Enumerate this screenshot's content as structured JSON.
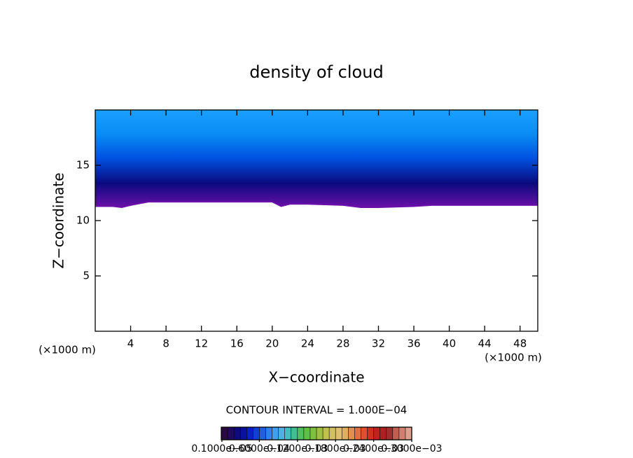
{
  "chart_data": {
    "type": "contour",
    "title": "density of cloud",
    "xlabel": "X−coordinate",
    "ylabel": "Z−coordinate",
    "x_unit": "(×1000 m)",
    "y_unit": "(×1000 m)",
    "xlim": [
      0,
      50
    ],
    "ylim": [
      0,
      20
    ],
    "xticks": [
      4,
      8,
      12,
      16,
      20,
      24,
      28,
      32,
      36,
      40,
      44,
      48
    ],
    "yticks": [
      5,
      10,
      15
    ],
    "x": [
      0,
      2,
      3,
      4,
      6,
      8,
      12,
      16,
      20,
      21,
      22,
      24,
      28,
      30,
      32,
      36,
      38,
      40,
      44,
      48,
      50
    ],
    "values": [
      11.3,
      11.3,
      11.2,
      11.4,
      11.7,
      11.7,
      11.7,
      11.7,
      11.7,
      11.3,
      11.5,
      11.5,
      11.4,
      11.2,
      11.2,
      11.3,
      11.4,
      11.4,
      11.4,
      11.4,
      11.4
    ],
    "fill_colors": [
      "#1aa0ff",
      "#0a8cf5",
      "#0050e0",
      "#0a0a80",
      "#6a10a8"
    ],
    "contour_interval": "CONTOUR INTERVAL = 1.000E−04",
    "colorbar_colors": [
      "#2a0a40",
      "#200a60",
      "#100a80",
      "#0a10a0",
      "#0a20c0",
      "#1040d0",
      "#2060e0",
      "#3080f0",
      "#40a0f0",
      "#50b0e0",
      "#40c0c0",
      "#40c090",
      "#50c060",
      "#60c040",
      "#80c040",
      "#a0c040",
      "#c0c050",
      "#d0c060",
      "#e0c070",
      "#e0b060",
      "#e09050",
      "#e07040",
      "#e05030",
      "#d03020",
      "#c02020",
      "#b02020",
      "#a03030",
      "#c06050",
      "#d08070",
      "#e0a090"
    ],
    "colorbar_lim": [
      0,
      0.0003
    ],
    "colorbar_ticks": [
      {
        "value": 1e-06,
        "label": "0.1000e−05"
      },
      {
        "value": 6e-05,
        "label": "0.6000e−04"
      },
      {
        "value": 0.00012,
        "label": "0.1200e−03"
      },
      {
        "value": 0.00018,
        "label": "0.1800e−03"
      },
      {
        "value": 0.00024,
        "label": "0.2400e−03"
      },
      {
        "value": 0.0003,
        "label": "0.3000e−03"
      }
    ]
  }
}
